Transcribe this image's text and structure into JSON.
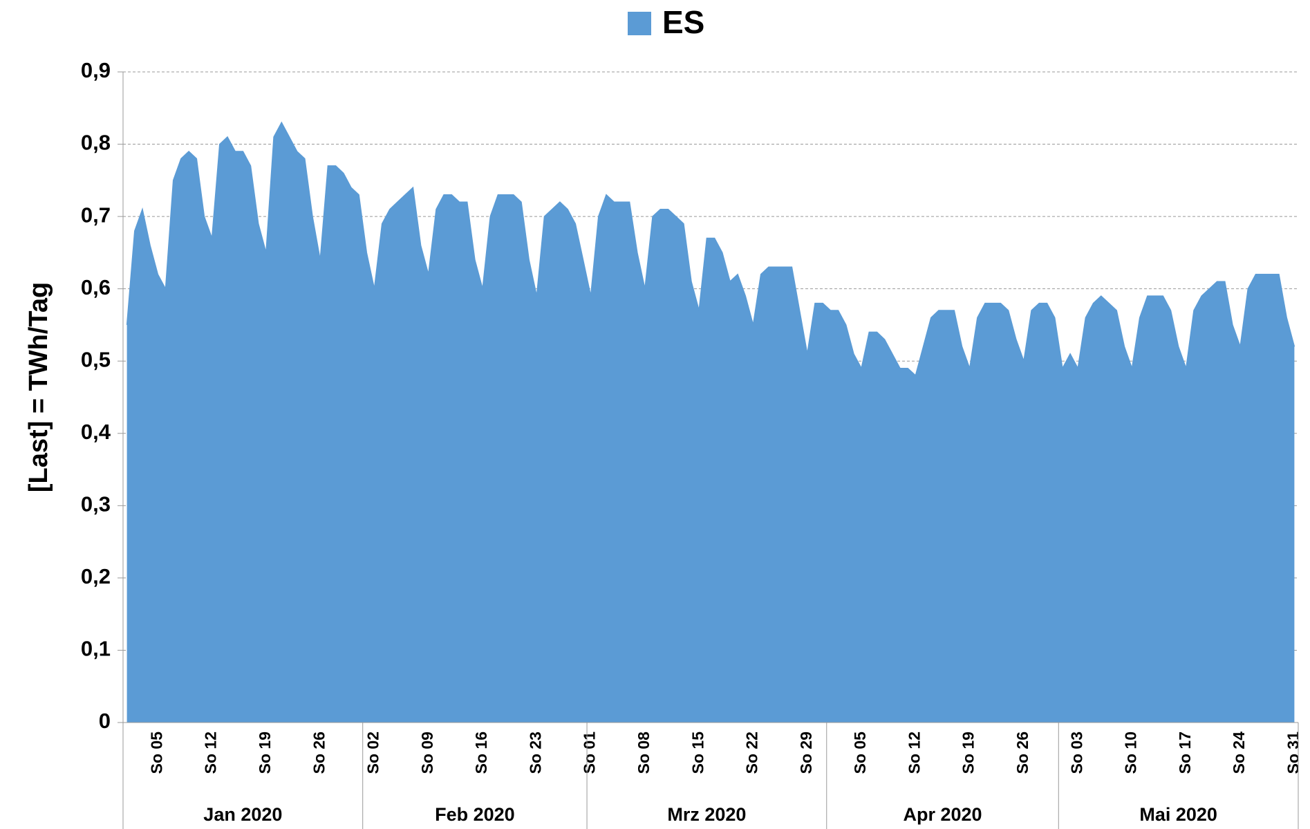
{
  "chart_data": {
    "type": "area",
    "y_label": "[Last]  =  TWh/Tag",
    "categories": [
      null,
      null,
      null,
      null,
      "So 05",
      null,
      null,
      null,
      null,
      null,
      null,
      "So 12",
      null,
      null,
      null,
      null,
      null,
      null,
      "So 19",
      null,
      null,
      null,
      null,
      null,
      null,
      "So 26",
      null,
      null,
      null,
      null,
      null,
      null,
      "So 02",
      null,
      null,
      null,
      null,
      null,
      null,
      "So 09",
      null,
      null,
      null,
      null,
      null,
      null,
      "So 16",
      null,
      null,
      null,
      null,
      null,
      null,
      "So 23",
      null,
      null,
      null,
      null,
      null,
      null,
      "So 01",
      null,
      null,
      null,
      null,
      null,
      null,
      "So 08",
      null,
      null,
      null,
      null,
      null,
      null,
      "So 15",
      null,
      null,
      null,
      null,
      null,
      null,
      "So 22",
      null,
      null,
      null,
      null,
      null,
      null,
      "So 29",
      null,
      null,
      null,
      null,
      null,
      null,
      "So 05",
      null,
      null,
      null,
      null,
      null,
      null,
      "So 12",
      null,
      null,
      null,
      null,
      null,
      null,
      "So 19",
      null,
      null,
      null,
      null,
      null,
      null,
      "So 26",
      null,
      null,
      null,
      null,
      null,
      null,
      "So 03",
      null,
      null,
      null,
      null,
      null,
      null,
      "So 10",
      null,
      null,
      null,
      null,
      null,
      null,
      "So 17",
      null,
      null,
      null,
      null,
      null,
      null,
      "So 24",
      null,
      null,
      null,
      null,
      null,
      null,
      "So 31"
    ],
    "groups": [
      {
        "label": "Jan 2020",
        "days": 31
      },
      {
        "label": "Feb 2020",
        "days": 29
      },
      {
        "label": "Mrz 2020",
        "days": 31
      },
      {
        "label": "Apr 2020",
        "days": 30
      },
      {
        "label": "Mai 2020",
        "days": 31
      }
    ],
    "series": [
      {
        "name": "ES",
        "color": "#5b9bd5",
        "values": [
          0.55,
          0.68,
          0.71,
          0.66,
          0.62,
          0.6,
          0.75,
          0.78,
          0.79,
          0.78,
          0.7,
          0.67,
          0.8,
          0.81,
          0.79,
          0.79,
          0.77,
          0.69,
          0.65,
          0.81,
          0.83,
          0.81,
          0.79,
          0.78,
          0.7,
          0.64,
          0.77,
          0.77,
          0.76,
          0.74,
          0.73,
          0.65,
          0.6,
          0.69,
          0.71,
          0.72,
          0.73,
          0.74,
          0.66,
          0.62,
          0.71,
          0.73,
          0.73,
          0.72,
          0.72,
          0.64,
          0.6,
          0.7,
          0.73,
          0.73,
          0.73,
          0.72,
          0.64,
          0.59,
          0.7,
          0.71,
          0.72,
          0.71,
          0.69,
          0.64,
          0.59,
          0.7,
          0.73,
          0.72,
          0.72,
          0.72,
          0.65,
          0.6,
          0.7,
          0.71,
          0.71,
          0.7,
          0.69,
          0.61,
          0.57,
          0.67,
          0.67,
          0.65,
          0.61,
          0.62,
          0.59,
          0.55,
          0.62,
          0.63,
          0.63,
          0.63,
          0.63,
          0.57,
          0.51,
          0.58,
          0.58,
          0.57,
          0.57,
          0.55,
          0.51,
          0.49,
          0.54,
          0.54,
          0.53,
          0.51,
          0.49,
          0.49,
          0.48,
          0.52,
          0.56,
          0.57,
          0.57,
          0.57,
          0.52,
          0.49,
          0.56,
          0.58,
          0.58,
          0.58,
          0.57,
          0.53,
          0.5,
          0.57,
          0.58,
          0.58,
          0.56,
          0.49,
          0.51,
          0.49,
          0.56,
          0.58,
          0.59,
          0.58,
          0.57,
          0.52,
          0.49,
          0.56,
          0.59,
          0.59,
          0.59,
          0.57,
          0.52,
          0.49,
          0.57,
          0.59,
          0.6,
          0.61,
          0.61,
          0.55,
          0.52,
          0.6,
          0.62,
          0.62,
          0.62,
          0.62,
          0.56,
          0.52
        ]
      }
    ],
    "ylim": [
      0,
      0.9
    ],
    "yticks": [
      0,
      {
        "value": 0.1,
        "label": "0,1"
      },
      {
        "value": 0.2,
        "label": "0,2"
      },
      {
        "value": 0.3,
        "label": "0,3"
      },
      {
        "value": 0.4,
        "label": "0,4"
      },
      {
        "value": 0.5,
        "label": "0,5"
      },
      {
        "value": 0.6,
        "label": "0,6"
      },
      {
        "value": 0.7,
        "label": "0,7"
      },
      {
        "value": 0.8,
        "label": "0,8"
      },
      {
        "value": 0.9,
        "label": "0,9"
      }
    ],
    "grid": true,
    "legend": "top"
  }
}
